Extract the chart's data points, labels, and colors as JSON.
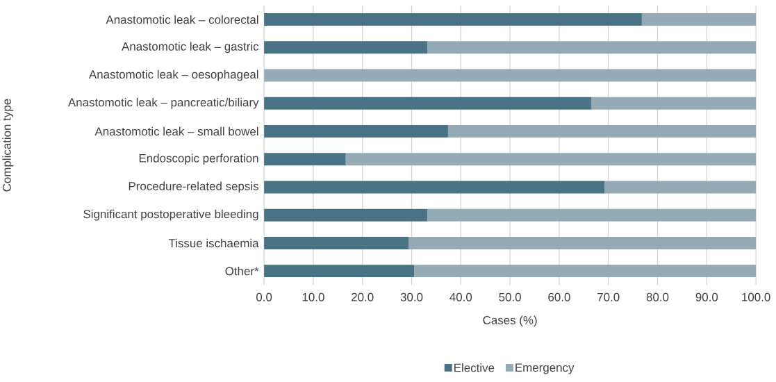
{
  "chart_data": {
    "type": "bar",
    "orientation": "horizontal",
    "stacked": true,
    "ylabel": "Complication type",
    "xlabel": "Cases (%)",
    "categories": [
      "Anastomotic leak – colorectal",
      "Anastomotic leak – gastric",
      "Anastomotic leak – oesophageal",
      "Anastomotic leak – pancreatic/biliary",
      "Anastomotic leak – small bowel",
      "Endoscopic perforation",
      "Procedure-related sepsis",
      "Significant postoperative bleeding",
      "Tissue ischaemia",
      "Other*"
    ],
    "series": [
      {
        "name": "Elective",
        "color": "#4a7285",
        "values": [
          76.8,
          33.2,
          0,
          66.5,
          37.4,
          16.6,
          69.2,
          33.2,
          29.4,
          30.5
        ]
      },
      {
        "name": "Emergency",
        "color": "#94abb6",
        "values": [
          23.2,
          66.8,
          100,
          33.5,
          62.6,
          83.4,
          30.8,
          66.8,
          70.6,
          69.5
        ]
      }
    ],
    "xlim": [
      0,
      100
    ],
    "xticks": [
      {
        "value": 0,
        "label": "0.0"
      },
      {
        "value": 10,
        "label": "10.0"
      },
      {
        "value": 20,
        "label": "20.0"
      },
      {
        "value": 30,
        "label": "30.0"
      },
      {
        "value": 40,
        "label": "40.0"
      },
      {
        "value": 50,
        "label": "50.0"
      },
      {
        "value": 60,
        "label": "60.0"
      },
      {
        "value": 70,
        "label": "70.0"
      },
      {
        "value": 80,
        "label": "80.0"
      },
      {
        "value": 90,
        "label": "90.0"
      },
      {
        "value": 100,
        "label": "100.0"
      }
    ],
    "grid": "x",
    "legend": "bottom"
  }
}
